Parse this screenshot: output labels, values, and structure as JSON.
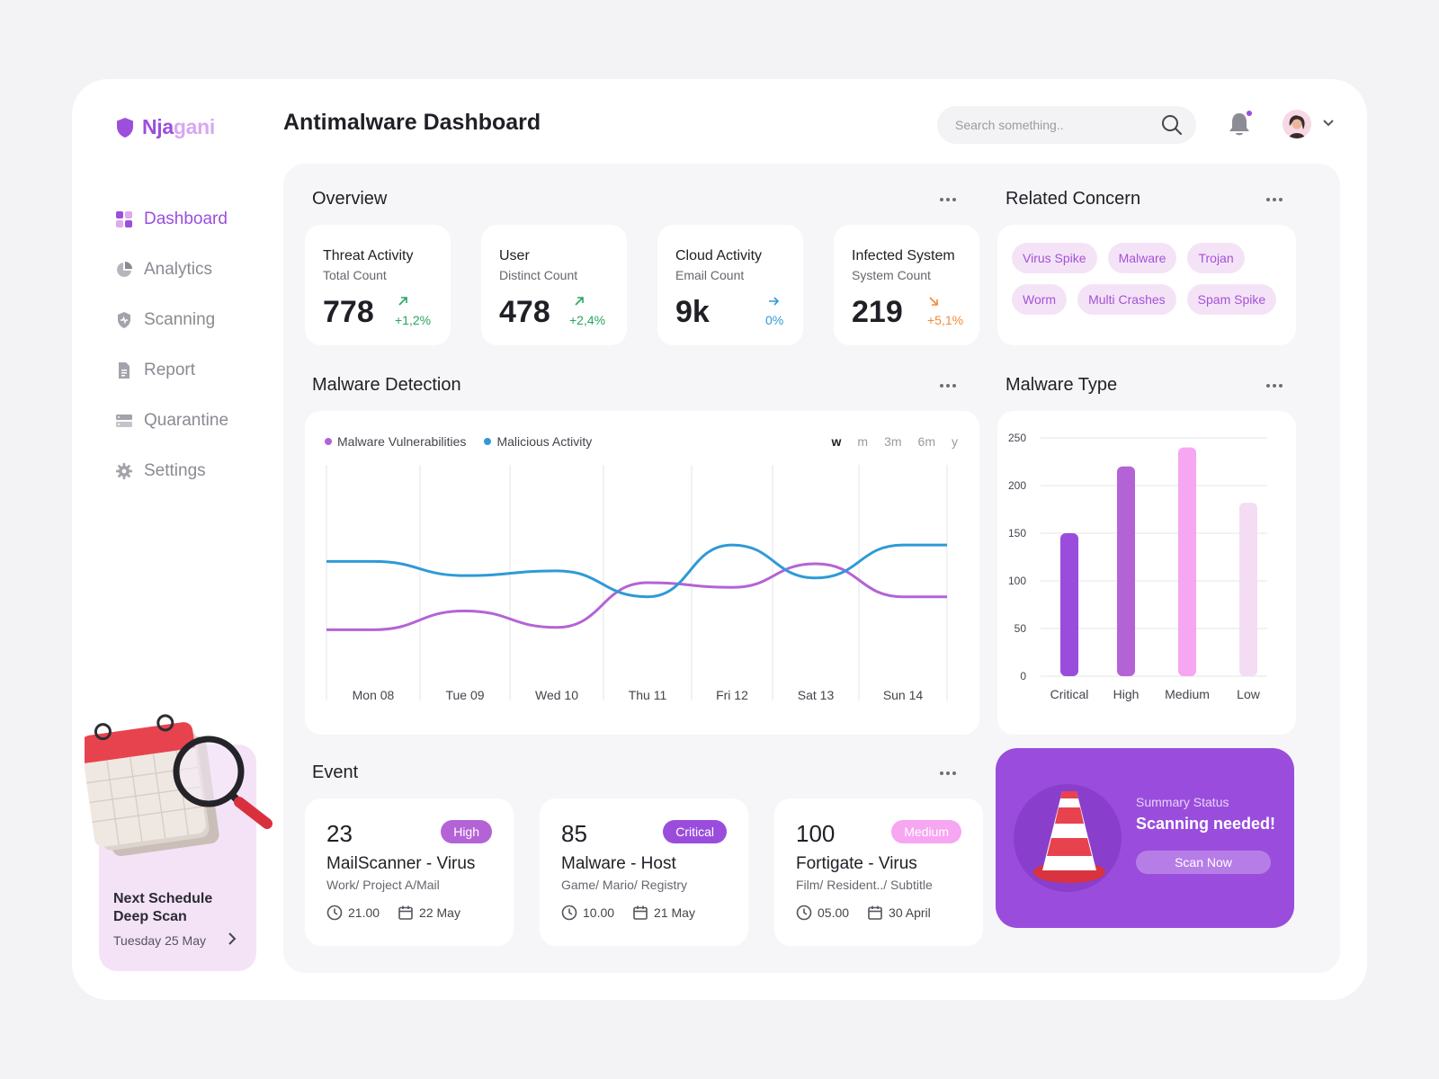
{
  "brand": {
    "name_a": "Nja",
    "name_b": "gani"
  },
  "header": {
    "title": "Antimalware Dashboard",
    "search_placeholder": "Search something.."
  },
  "sidebar": {
    "items": [
      {
        "label": "Dashboard",
        "icon": "grid-icon"
      },
      {
        "label": "Analytics",
        "icon": "pie-chart-icon"
      },
      {
        "label": "Scanning",
        "icon": "shield-icon"
      },
      {
        "label": "Report",
        "icon": "document-icon"
      },
      {
        "label": "Quarantine",
        "icon": "server-icon"
      },
      {
        "label": "Settings",
        "icon": "gear-icon"
      }
    ],
    "schedule": {
      "title_line1": "Next Schedule",
      "title_line2": "Deep Scan",
      "date": "Tuesday 25 May"
    }
  },
  "overview": {
    "title": "Overview",
    "stats": [
      {
        "title": "Threat Activity",
        "sub": "Total Count",
        "value": "778",
        "delta": "+1,2%",
        "trend": "up",
        "color": "#28a55f"
      },
      {
        "title": "User",
        "sub": "Distinct Count",
        "value": "478",
        "delta": "+2,4%",
        "trend": "up",
        "color": "#28a55f"
      },
      {
        "title": "Cloud Activity",
        "sub": "Email Count",
        "value": "9k",
        "delta": "0%",
        "trend": "flat",
        "color": "#2f9ad6"
      },
      {
        "title": "Infected System",
        "sub": "System Count",
        "value": "219",
        "delta": "+5,1%",
        "trend": "down",
        "color": "#f08a3a"
      }
    ]
  },
  "concern": {
    "title": "Related Concern",
    "tags": [
      "Virus Spike",
      "Malware",
      "Trojan",
      "Worm",
      "Multi Crashes",
      "Spam Spike"
    ]
  },
  "detection": {
    "title": "Malware Detection",
    "ranges": [
      "w",
      "m",
      "3m",
      "6m",
      "y"
    ],
    "active_range": "w"
  },
  "chart_data": [
    {
      "type": "line",
      "x": [
        "Mon 08",
        "Tue 09",
        "Wed 10",
        "Thu 11",
        "Fri 12",
        "Sat 13",
        "Sun 14"
      ],
      "series": [
        {
          "name": "Malware Vulnerabilities",
          "color": "#b463d6",
          "values": [
            0.3,
            0.38,
            0.31,
            0.5,
            0.48,
            0.58,
            0.44
          ]
        },
        {
          "name": "Malicious Activity",
          "color": "#2f9ad6",
          "values": [
            0.59,
            0.53,
            0.55,
            0.44,
            0.66,
            0.52,
            0.66
          ]
        }
      ],
      "grid": "vertical"
    },
    {
      "type": "bar",
      "title": "Malware Type",
      "categories": [
        "Critical",
        "High",
        "Medium",
        "Low"
      ],
      "values": [
        150,
        220,
        240,
        182
      ],
      "colors": [
        "#9a4ddc",
        "#b463d6",
        "#f7a6f2",
        "#f4dcf3"
      ],
      "ylim": [
        0,
        250
      ],
      "yticks": [
        0,
        50,
        100,
        150,
        200,
        250
      ]
    }
  ],
  "events": {
    "title": "Event",
    "items": [
      {
        "num": "23",
        "badge": "High",
        "badge_color": "#b463d6",
        "title": "MailScanner - Virus",
        "path": "Work/ Project A/Mail",
        "time": "21.00",
        "date": "22 May"
      },
      {
        "num": "85",
        "badge": "Critical",
        "badge_color": "#9a4ddc",
        "title": "Malware - Host",
        "path": "Game/ Mario/ Registry",
        "time": "10.00",
        "date": "21 May"
      },
      {
        "num": "100",
        "badge": "Medium",
        "badge_color": "#f7a6f2",
        "title": "Fortigate - Virus",
        "path": "Film/ Resident../ Subtitle",
        "time": "05.00",
        "date": "30 April"
      }
    ]
  },
  "summary": {
    "label": "Summary Status",
    "status": "Scanning needed!",
    "button": "Scan Now"
  }
}
